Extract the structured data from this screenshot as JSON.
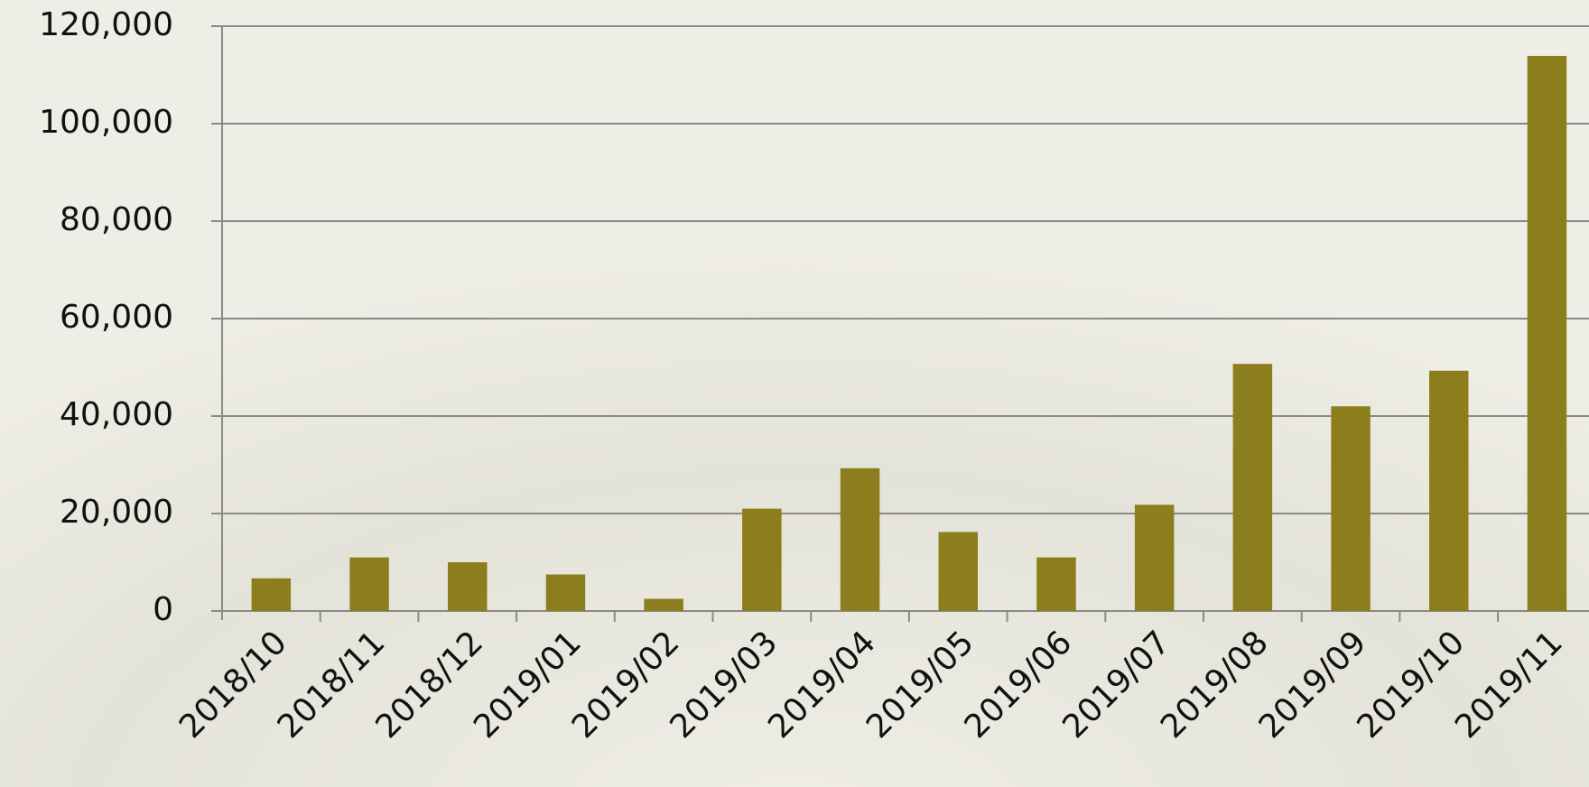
{
  "chart_data": {
    "type": "bar",
    "categories": [
      "2018/10",
      "2018/11",
      "2018/12",
      "2019/01",
      "2019/02",
      "2019/03",
      "2019/04",
      "2019/05",
      "2019/06",
      "2019/07",
      "2019/08",
      "2019/09",
      "2019/10",
      "2019/11"
    ],
    "values": [
      6700,
      11000,
      10000,
      7500,
      2500,
      21000,
      29300,
      16200,
      11000,
      21800,
      50700,
      42000,
      49300,
      113900
    ],
    "color": "#8c7e1c",
    "ylim": [
      0,
      120000
    ],
    "yticks": [
      0,
      {
        "value": 20000,
        "label": "20,000"
      },
      {
        "value": 40000,
        "label": "40,000"
      },
      {
        "value": 60000,
        "label": "60,000"
      },
      {
        "value": 80000,
        "label": "80,000"
      },
      {
        "value": 100000,
        "label": "100,000"
      },
      {
        "value": 120000,
        "label": "120,000"
      }
    ],
    "grid": true
  }
}
